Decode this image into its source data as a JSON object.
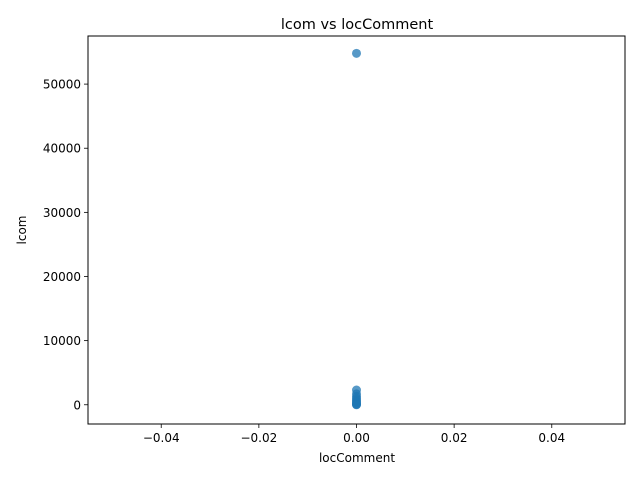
{
  "chart_data": {
    "type": "scatter",
    "title": "lcom vs locComment",
    "xlabel": "locComment",
    "ylabel": "lcom",
    "xlim": [
      -0.055,
      0.055
    ],
    "ylim": [
      -3000,
      57500
    ],
    "xticks": [
      -0.04,
      -0.02,
      0.0,
      0.02,
      0.04
    ],
    "xtick_labels": [
      "−0.04",
      "−0.02",
      "0.00",
      "0.02",
      "0.04"
    ],
    "yticks": [
      0,
      10000,
      20000,
      30000,
      40000,
      50000
    ],
    "ytick_labels": [
      "0",
      "10000",
      "20000",
      "30000",
      "40000",
      "50000"
    ],
    "grid": false,
    "marker_color": "#1f77b4",
    "marker_alpha": 0.75,
    "points": [
      {
        "x": 0,
        "y": 54800
      },
      {
        "x": 0,
        "y": 2300
      },
      {
        "x": 0,
        "y": 1700
      },
      {
        "x": 0,
        "y": 1300
      },
      {
        "x": 0,
        "y": 1000
      },
      {
        "x": 0,
        "y": 750
      },
      {
        "x": 0,
        "y": 500
      },
      {
        "x": 0,
        "y": 300
      },
      {
        "x": 0,
        "y": 150
      },
      {
        "x": 0,
        "y": 50
      },
      {
        "x": 0,
        "y": 0
      }
    ]
  }
}
